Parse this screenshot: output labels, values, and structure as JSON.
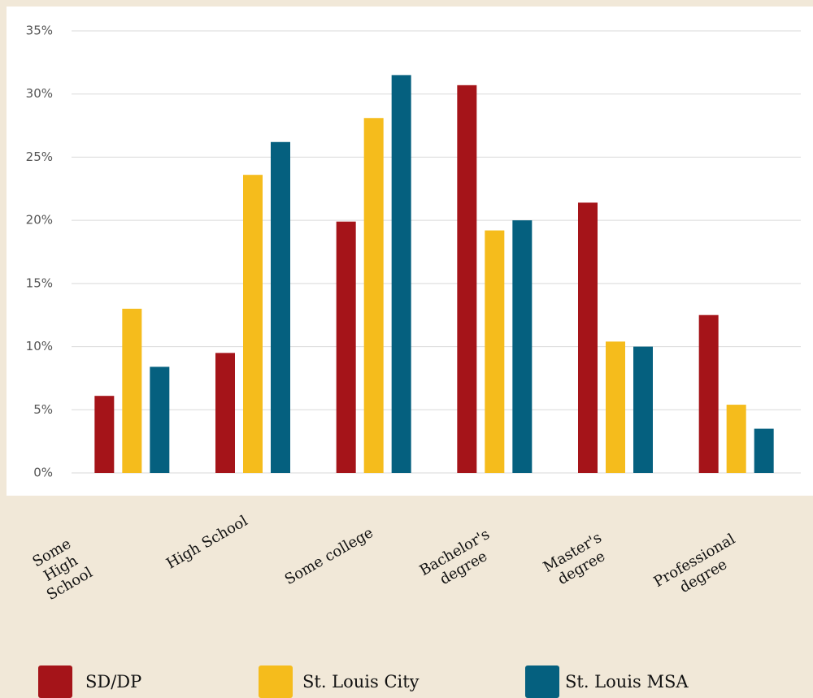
{
  "chart_data": {
    "type": "bar",
    "categories": [
      "Some High School",
      "High School",
      "Some college",
      "Bachelor's degree",
      "Master's degree",
      "Professional degree"
    ],
    "series": [
      {
        "name": "SD/DP",
        "color": "#a51419",
        "values": [
          6.1,
          9.5,
          19.9,
          30.7,
          21.4,
          12.5
        ]
      },
      {
        "name": "St. Louis City",
        "color": "#f5bc1c",
        "values": [
          13.0,
          23.6,
          28.1,
          19.2,
          10.4,
          5.4
        ]
      },
      {
        "name": "St. Louis MSA",
        "color": "#05607f",
        "values": [
          8.4,
          26.2,
          31.5,
          20.0,
          10.0,
          3.5
        ]
      }
    ],
    "ylim": [
      0,
      35
    ],
    "yticks": [
      {
        "value": 0,
        "label": "0%"
      },
      {
        "value": 5,
        "label": "5%"
      },
      {
        "value": 10,
        "label": "10%"
      },
      {
        "value": 15,
        "label": "15%"
      },
      {
        "value": 20,
        "label": "20%"
      },
      {
        "value": 25,
        "label": "25%"
      },
      {
        "value": 30,
        "label": "30%"
      },
      {
        "value": 35,
        "label": "35%"
      }
    ],
    "grid": true
  }
}
